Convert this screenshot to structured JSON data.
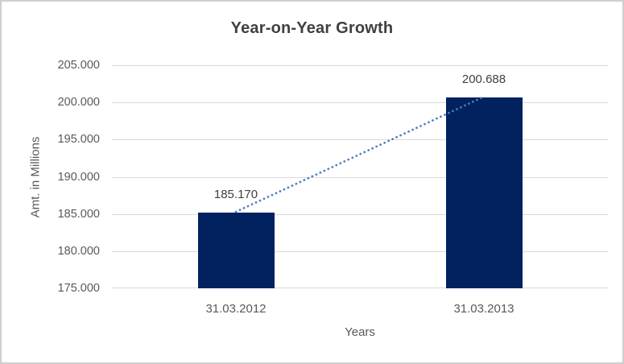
{
  "chart_data": {
    "type": "bar",
    "title": "Year-on-Year Growth",
    "xlabel": "Years",
    "ylabel": "Amt. in Millions",
    "categories": [
      "31.03.2012",
      "31.03.2013"
    ],
    "values": [
      185170,
      200688
    ],
    "data_labels": [
      "185.170",
      "200.688"
    ],
    "ylim": [
      175000,
      205000
    ],
    "y_ticks": [
      {
        "value": 175000,
        "label": "175.000"
      },
      {
        "value": 180000,
        "label": "180.000"
      },
      {
        "value": 185000,
        "label": "185.000"
      },
      {
        "value": 190000,
        "label": "190.000"
      },
      {
        "value": 195000,
        "label": "195.000"
      },
      {
        "value": 200000,
        "label": "200.000"
      },
      {
        "value": 205000,
        "label": "205.000"
      }
    ],
    "grid": true,
    "legend": false,
    "bar_color": "#02215f",
    "trendline": {
      "type": "linear",
      "style": "dotted",
      "color": "#4a7ebb"
    }
  }
}
